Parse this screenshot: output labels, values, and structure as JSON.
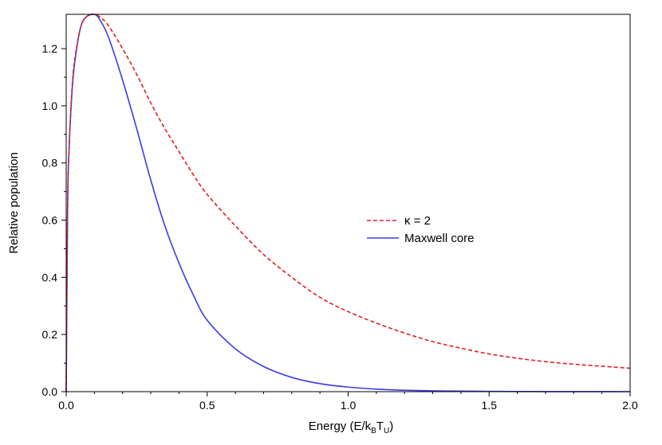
{
  "chart_data": {
    "type": "line",
    "title": "",
    "xlabel_parts": {
      "main": "Energy (E/k",
      "sub1": "B",
      "mid": "T",
      "sub2": "U",
      "end": ")"
    },
    "ylabel": "Relative population",
    "xlim": [
      0,
      2.0
    ],
    "ylim": [
      0,
      1.32
    ],
    "xticks": [
      0.0,
      0.5,
      1.0,
      1.5,
      2.0
    ],
    "xtick_labels": [
      "0.0",
      "0.5",
      "1.0",
      "1.5",
      "2.0"
    ],
    "yticks": [
      0.0,
      0.2,
      0.4,
      0.6,
      0.8,
      1.0,
      1.2
    ],
    "ytick_labels": [
      "0.0",
      "0.2",
      "0.4",
      "0.6",
      "0.8",
      "1.0",
      "1.2"
    ],
    "grid": false,
    "legend_position": "center-right",
    "series": [
      {
        "name": "κ = 2",
        "color": "#e02020",
        "dash": "dashed",
        "x": [
          0.0,
          0.005,
          0.01,
          0.02,
          0.03,
          0.05,
          0.07,
          0.1,
          0.12,
          0.15,
          0.2,
          0.25,
          0.3,
          0.35,
          0.4,
          0.45,
          0.5,
          0.6,
          0.7,
          0.8,
          0.9,
          1.0,
          1.1,
          1.2,
          1.3,
          1.4,
          1.5,
          1.6,
          1.7,
          1.8,
          1.9,
          2.0
        ],
        "y": [
          0.0,
          0.66,
          0.85,
          1.05,
          1.16,
          1.27,
          1.31,
          1.32,
          1.31,
          1.28,
          1.2,
          1.11,
          1.01,
          0.92,
          0.84,
          0.76,
          0.69,
          0.58,
          0.48,
          0.4,
          0.33,
          0.28,
          0.24,
          0.205,
          0.175,
          0.152,
          0.132,
          0.117,
          0.105,
          0.096,
          0.089,
          0.082
        ]
      },
      {
        "name": "Maxwell core",
        "color": "#3b3be6",
        "dash": "solid",
        "x": [
          0.0,
          0.005,
          0.01,
          0.02,
          0.03,
          0.05,
          0.07,
          0.1,
          0.12,
          0.15,
          0.2,
          0.25,
          0.3,
          0.35,
          0.4,
          0.45,
          0.5,
          0.6,
          0.7,
          0.8,
          0.9,
          1.0,
          1.1,
          1.2,
          1.3,
          1.4,
          1.5,
          1.6,
          1.7,
          1.8,
          1.9,
          2.0
        ],
        "y": [
          0.0,
          0.64,
          0.84,
          1.04,
          1.15,
          1.27,
          1.31,
          1.32,
          1.3,
          1.24,
          1.09,
          0.92,
          0.74,
          0.58,
          0.45,
          0.34,
          0.25,
          0.15,
          0.088,
          0.05,
          0.028,
          0.016,
          0.009,
          0.005,
          0.003,
          0.002,
          0.001,
          0.0006,
          0.0003,
          0.0002,
          0.0001,
          0.0
        ]
      }
    ]
  }
}
